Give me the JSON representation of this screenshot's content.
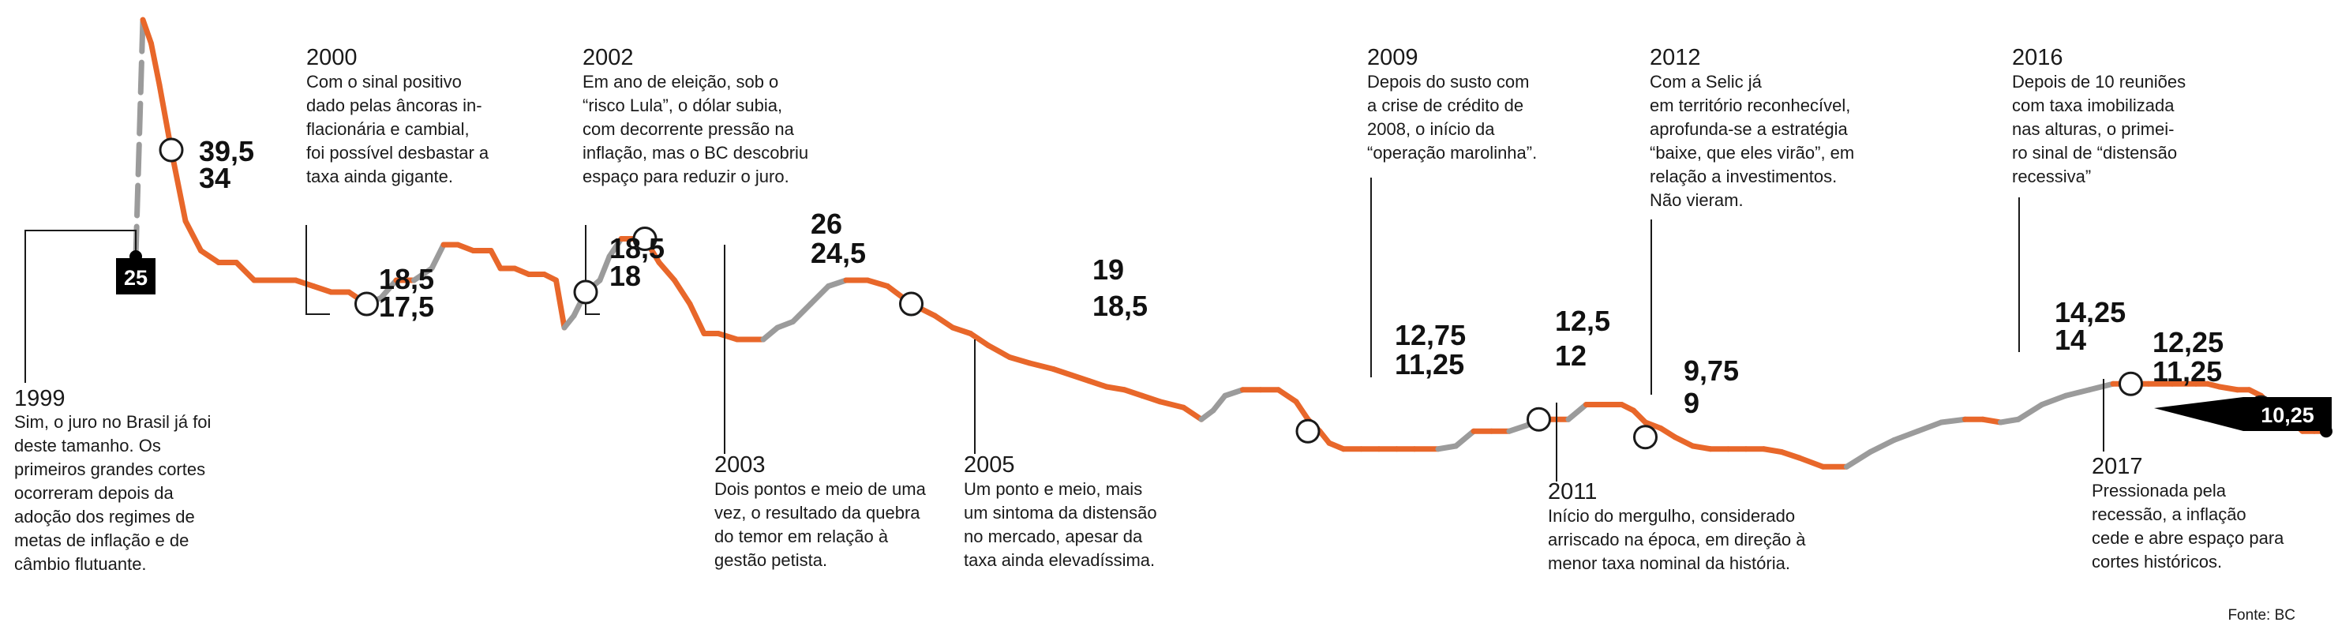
{
  "colors": {
    "cut": "#e8672a",
    "hold": "#9b9b9b",
    "text": "#1a1a1a",
    "box": "#000000"
  },
  "chart_data": {
    "type": "line",
    "series": [
      {
        "x": [
          1999.0,
          1999.06,
          1999.13,
          1999.2,
          1999.3,
          1999.42,
          1999.55,
          1999.7,
          1999.85,
          2000.0,
          2000.1,
          2000.22,
          2000.35,
          2000.5,
          2000.65,
          2000.8,
          2000.95,
          2001.07,
          2001.2,
          2001.35,
          2001.5,
          2001.6,
          2001.72,
          2001.85,
          2002.0,
          2002.08,
          2002.2,
          2002.32,
          2002.45,
          2002.55,
          2002.62,
          2002.7,
          2002.8,
          2002.92,
          2003.0,
          2003.1,
          2003.22,
          2003.3,
          2003.42,
          2003.55,
          2003.68,
          2003.8,
          2003.92,
          2004.08,
          2004.2,
          2004.3,
          2004.42,
          2004.55,
          2004.7,
          2004.85,
          2005.0,
          2005.18,
          2005.35,
          2005.55,
          2005.75,
          2005.9,
          2006.05,
          2006.2,
          2006.38,
          2006.55,
          2006.75,
          2006.9,
          2007.05,
          2007.2,
          2007.35,
          2007.5,
          2007.65,
          2007.85,
          2008.0,
          2008.1,
          2008.2,
          2008.35,
          2008.5,
          2008.65,
          2008.8,
          2008.9,
          2009.0,
          2009.08,
          2009.2,
          2009.35,
          2009.5,
          2009.65,
          2009.8,
          2010.0,
          2010.15,
          2010.3,
          2010.45,
          2010.6,
          2010.75,
          2010.85,
          2011.0,
          2011.1,
          2011.25,
          2011.4,
          2011.55,
          2011.65,
          2011.75,
          2011.88,
          2012.0,
          2012.15,
          2012.3,
          2012.45,
          2012.6,
          2012.75,
          2012.9,
          2013.05,
          2013.25,
          2013.45,
          2013.65,
          2013.85,
          2014.05,
          2014.25,
          2014.45,
          2014.6,
          2014.75,
          2014.9,
          2015.1,
          2015.3,
          2015.5,
          2015.7,
          2015.85,
          2016.0,
          2016.2,
          2016.4,
          2016.5,
          2016.6,
          2016.75,
          2016.85,
          2016.95,
          2017.05,
          2017.2,
          2017.3,
          2017.4,
          2017.5
        ],
        "y": [
          25,
          45,
          43,
          39.5,
          34,
          28,
          25.5,
          24.5,
          24.5,
          23,
          23,
          23,
          23,
          22.5,
          22,
          22,
          21,
          21.5,
          23,
          23,
          24,
          26,
          26,
          25.5,
          25.5,
          24,
          24,
          23.5,
          23.5,
          23,
          19,
          20,
          22,
          23,
          25,
          26.5,
          26.5,
          26.5,
          24.5,
          23,
          21,
          18.5,
          18.5,
          18,
          18,
          18,
          19,
          19.5,
          21,
          22.5,
          23,
          23,
          22.5,
          21,
          20,
          19,
          18.5,
          17.5,
          16.5,
          16,
          15.5,
          15,
          14.5,
          14,
          13.75,
          13.25,
          12.75,
          12.25,
          11.25,
          12,
          13.25,
          13.75,
          13.75,
          13.75,
          12.75,
          11.25,
          10.25,
          9.25,
          8.75,
          8.75,
          8.75,
          8.75,
          8.75,
          8.75,
          9,
          10.25,
          10.25,
          10.25,
          10.75,
          11.25,
          11.25,
          11.25,
          12.5,
          12.5,
          12.5,
          12,
          11,
          10.5,
          9.75,
          9,
          8.75,
          8.75,
          8.75,
          8.75,
          8.5,
          8,
          7.25,
          7.25,
          8.5,
          9.5,
          10.25,
          11,
          11.25,
          11.25,
          11,
          11.25,
          12.5,
          13.25,
          13.75,
          14.25,
          14.25,
          14.25,
          14.25,
          14.25,
          14.25,
          14,
          13.75,
          13.75,
          13.25,
          12.25,
          11.25,
          10.25,
          10.25,
          10.25
        ]
      }
    ]
  },
  "markers": [
    {
      "x": 1999.3,
      "y": 34
    },
    {
      "x": 2000.95,
      "y": 21
    },
    {
      "x": 2002.8,
      "y": 22
    },
    {
      "x": 2003.3,
      "y": 26.5
    },
    {
      "x": 2005.55,
      "y": 21
    },
    {
      "x": 2008.9,
      "y": 10.25
    },
    {
      "x": 2010.85,
      "y": 11.25
    },
    {
      "x": 2011.75,
      "y": 9.75
    },
    {
      "x": 2015.85,
      "y": 14.25
    },
    {
      "x": 2016.95,
      "y": 12.25
    }
  ],
  "start_box": {
    "label": "25"
  },
  "end_box": {
    "label": "10,25"
  },
  "value_labels": [
    {
      "top": "39,5",
      "bottom": "34"
    },
    {
      "top": "18,5",
      "bottom": "17,5"
    },
    {
      "top": "18,5",
      "bottom": "18"
    },
    {
      "top": "26",
      "bottom": "24,5"
    },
    {
      "top": "19",
      "bottom": "18,5"
    },
    {
      "top": "12,75",
      "bottom": "11,25"
    },
    {
      "top": "12,5",
      "bottom": "12"
    },
    {
      "top": "9,75",
      "bottom": "9"
    },
    {
      "top": "14,25",
      "bottom": "14"
    },
    {
      "top": "12,25",
      "bottom": "11,25"
    }
  ],
  "annotations": [
    {
      "year": "1999",
      "lines": [
        "Sim, o juro no Brasil já foi",
        "deste tamanho. Os",
        "primeiros grandes cortes",
        "ocorreram depois da",
        "adoção dos regimes de",
        "metas de inflação e de",
        "câmbio flutuante."
      ]
    },
    {
      "year": "2000",
      "lines": [
        "Com o sinal positivo",
        "dado pelas âncoras in-",
        "flacionária e cambial,",
        "foi possível desbastar a",
        "taxa ainda gigante."
      ]
    },
    {
      "year": "2002",
      "lines": [
        "Em ano de eleição, sob o",
        "“risco Lula”, o dólar subia,",
        "com decorrente pressão na",
        "inflação, mas o BC descobriu",
        "espaço para reduzir o juro."
      ]
    },
    {
      "year": "2003",
      "lines": [
        "Dois pontos e meio de uma",
        "vez, o resultado da quebra",
        "do temor em relação à",
        "gestão petista."
      ]
    },
    {
      "year": "2005",
      "lines": [
        "Um ponto e meio, mais",
        "um sintoma da distensão",
        "no mercado, apesar da",
        "taxa ainda elevadíssima."
      ]
    },
    {
      "year": "2009",
      "lines": [
        "Depois do susto com",
        "a crise de crédito de",
        "2008, o início da",
        "“operação marolinha”."
      ]
    },
    {
      "year": "2011",
      "lines": [
        "Início do mergulho, considerado",
        "arriscado na época, em direção à",
        "menor taxa nominal da história."
      ]
    },
    {
      "year": "2012",
      "lines": [
        "Com a Selic já",
        "em território reconhecível,",
        "aprofunda-se a estratégia",
        "“baixe, que eles virão”, em",
        "relação a investimentos.",
        "Não vieram."
      ]
    },
    {
      "year": "2016",
      "lines": [
        "Depois de 10 reuniões",
        "com taxa imobilizada",
        "nas alturas, o primei-",
        "ro sinal de “distensão",
        "recessiva”"
      ]
    },
    {
      "year": "2017",
      "lines": [
        "Pressionada pela",
        "recessão, a inflação",
        "cede e abre espaço para",
        "cortes históricos."
      ]
    }
  ],
  "source": "Fonte: BC"
}
